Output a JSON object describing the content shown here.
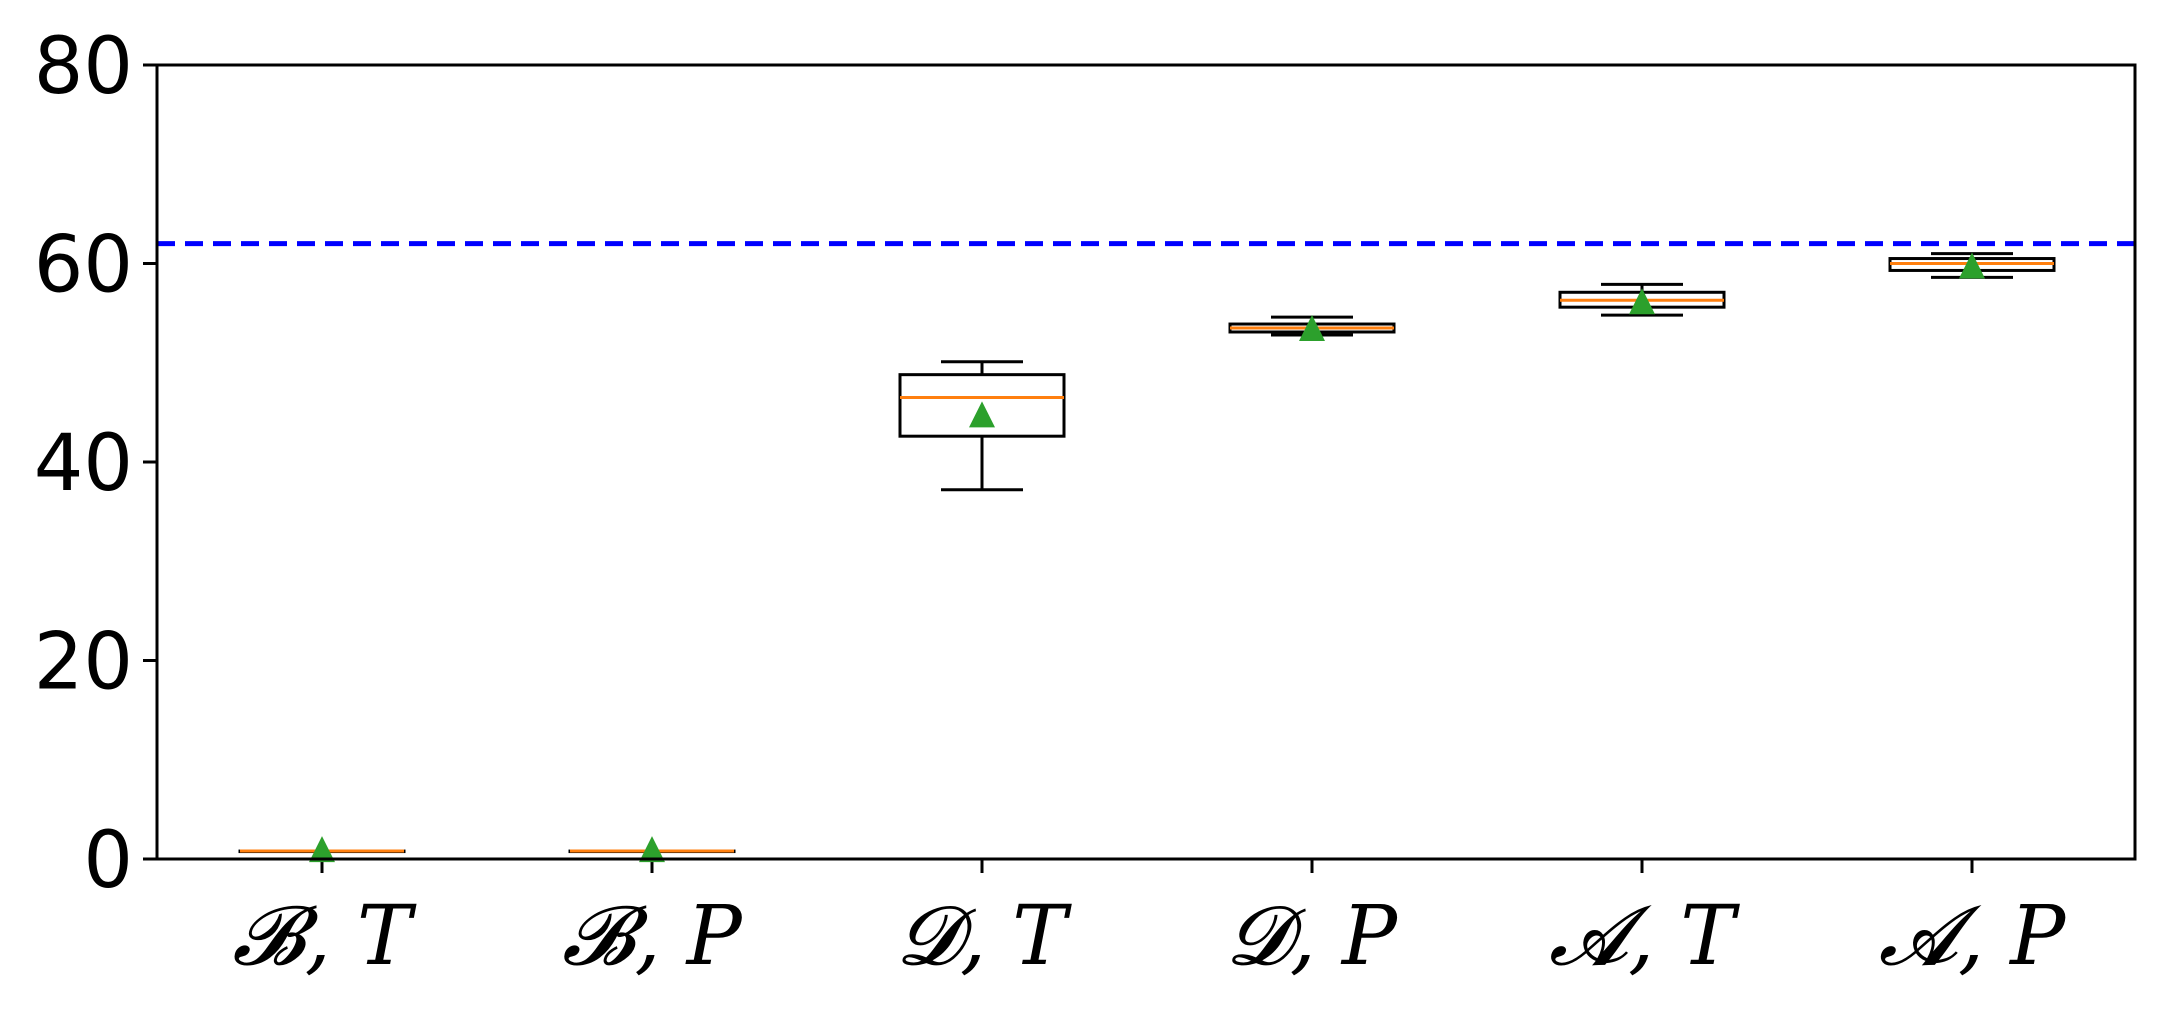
{
  "chart_data": {
    "type": "box",
    "title": "",
    "xlabel": "",
    "ylabel": "",
    "ylim": [
      0,
      80
    ],
    "yticks": [
      0,
      20,
      40,
      60,
      80
    ],
    "grid": false,
    "categories": [
      "𝓑, T",
      "𝓑, P",
      "𝓓, T",
      "𝓓, P",
      "𝓐, T",
      "𝓐, P"
    ],
    "boxes": [
      {
        "whisker_low": 0.8,
        "q1": 0.8,
        "median": 0.8,
        "q3": 0.8,
        "whisker_high": 0.8,
        "mean": 1.0
      },
      {
        "whisker_low": 0.8,
        "q1": 0.8,
        "median": 0.8,
        "q3": 0.8,
        "whisker_high": 0.8,
        "mean": 1.0
      },
      {
        "whisker_low": 37.2,
        "q1": 42.6,
        "median": 46.5,
        "q3": 48.8,
        "whisker_high": 50.1,
        "mean": 44.8
      },
      {
        "whisker_low": 52.8,
        "q1": 53.1,
        "median": 53.5,
        "q3": 53.9,
        "whisker_high": 54.6,
        "mean": 53.5
      },
      {
        "whisker_low": 54.8,
        "q1": 55.6,
        "median": 56.3,
        "q3": 57.1,
        "whisker_high": 57.9,
        "mean": 56.2
      },
      {
        "whisker_low": 58.6,
        "q1": 59.3,
        "median": 60.0,
        "q3": 60.5,
        "whisker_high": 61.0,
        "mean": 59.8
      }
    ],
    "reference_line": {
      "value": 62.0,
      "color": "#0000ff",
      "style": "dashed"
    },
    "colors": {
      "box": "#000000",
      "median": "#ff7f0e",
      "mean_marker": "#2ca02c",
      "axes": "#000000"
    }
  }
}
